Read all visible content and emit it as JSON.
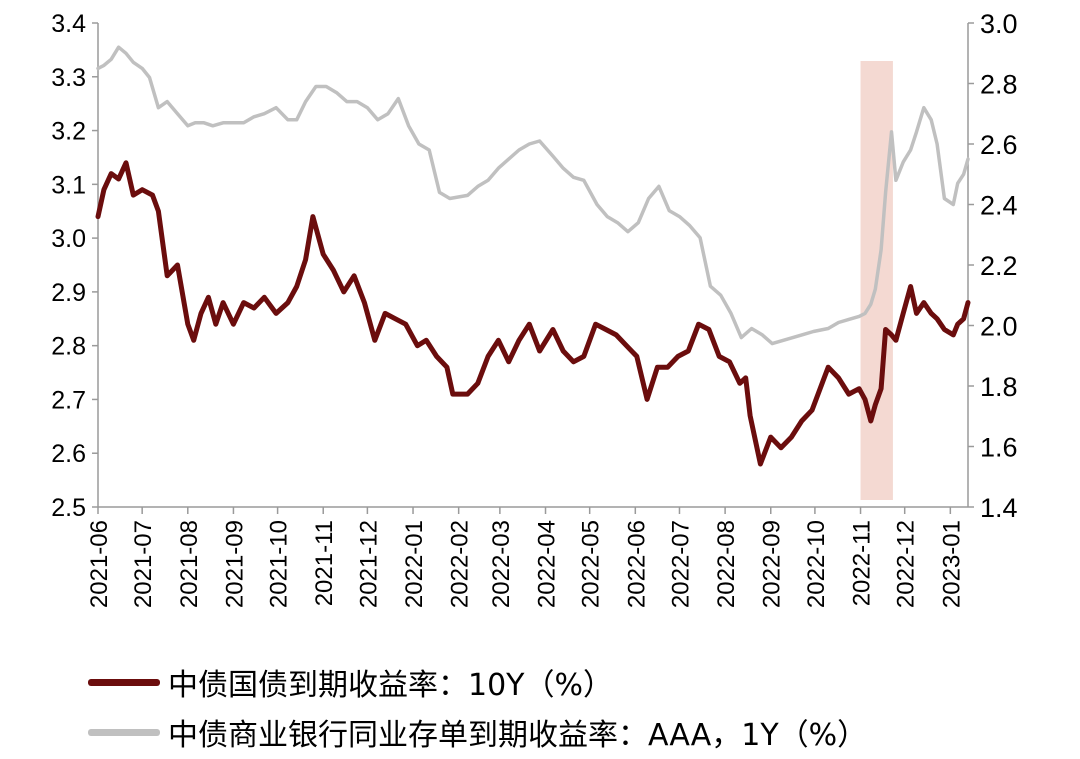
{
  "chart_data": {
    "type": "line",
    "x_ticks": [
      "2021-06",
      "2021-07",
      "2021-08",
      "2021-09",
      "2021-10",
      "2021-11",
      "2021-12",
      "2022-01",
      "2022-02",
      "2022-03",
      "2022-04",
      "2022-05",
      "2022-06",
      "2022-07",
      "2022-08",
      "2022-09",
      "2022-10",
      "2022-11",
      "2022-12",
      "2023-01"
    ],
    "y_left": {
      "ylim": [
        2.5,
        3.4
      ],
      "ticks": [
        "2.5",
        "2.6",
        "2.7",
        "2.8",
        "2.9",
        "3.0",
        "3.1",
        "3.2",
        "3.3",
        "3.4"
      ]
    },
    "y_right": {
      "ylim": [
        1.4,
        3.0
      ],
      "ticks": [
        "1.4",
        "1.6",
        "1.8",
        "2.0",
        "2.2",
        "2.4",
        "2.6",
        "2.8",
        "3.0"
      ]
    },
    "highlight_band": {
      "x_start": "2022-11-01",
      "x_end": "2022-11-23",
      "color": "#f4d9d2"
    },
    "series": [
      {
        "name": "中债国债到期收益率：10Y（%）",
        "axis": "left",
        "color": "#6b0d0d",
        "x": [
          "2021-06-01",
          "2021-06-05",
          "2021-06-10",
          "2021-06-15",
          "2021-06-20",
          "2021-06-25",
          "2021-07-01",
          "2021-07-08",
          "2021-07-12",
          "2021-07-18",
          "2021-07-25",
          "2021-08-01",
          "2021-08-05",
          "2021-08-10",
          "2021-08-15",
          "2021-08-20",
          "2021-08-25",
          "2021-09-01",
          "2021-09-08",
          "2021-09-15",
          "2021-09-22",
          "2021-09-30",
          "2021-10-08",
          "2021-10-14",
          "2021-10-20",
          "2021-10-25",
          "2021-11-01",
          "2021-11-08",
          "2021-11-15",
          "2021-11-22",
          "2021-11-29",
          "2021-12-06",
          "2021-12-13",
          "2021-12-20",
          "2021-12-27",
          "2022-01-04",
          "2022-01-10",
          "2022-01-17",
          "2022-01-24",
          "2022-01-28",
          "2022-02-07",
          "2022-02-14",
          "2022-02-21",
          "2022-02-28",
          "2022-03-07",
          "2022-03-14",
          "2022-03-21",
          "2022-03-28",
          "2022-04-06",
          "2022-04-13",
          "2022-04-20",
          "2022-04-27",
          "2022-05-05",
          "2022-05-12",
          "2022-05-19",
          "2022-05-26",
          "2022-06-02",
          "2022-06-09",
          "2022-06-16",
          "2022-06-23",
          "2022-06-30",
          "2022-07-07",
          "2022-07-14",
          "2022-07-21",
          "2022-07-28",
          "2022-08-04",
          "2022-08-11",
          "2022-08-15",
          "2022-08-18",
          "2022-08-25",
          "2022-09-01",
          "2022-09-08",
          "2022-09-15",
          "2022-09-22",
          "2022-09-29",
          "2022-10-10",
          "2022-10-17",
          "2022-10-24",
          "2022-10-31",
          "2022-11-04",
          "2022-11-08",
          "2022-11-11",
          "2022-11-15",
          "2022-11-18",
          "2022-11-22",
          "2022-11-25",
          "2022-11-30",
          "2022-12-05",
          "2022-12-09",
          "2022-12-14",
          "2022-12-19",
          "2022-12-23",
          "2022-12-28",
          "2023-01-03",
          "2023-01-06",
          "2023-01-10",
          "2023-01-13"
        ],
        "values": [
          3.04,
          3.09,
          3.12,
          3.11,
          3.14,
          3.08,
          3.09,
          3.08,
          3.05,
          2.93,
          2.95,
          2.84,
          2.81,
          2.86,
          2.89,
          2.84,
          2.88,
          2.84,
          2.88,
          2.87,
          2.89,
          2.86,
          2.88,
          2.91,
          2.96,
          3.04,
          2.97,
          2.94,
          2.9,
          2.93,
          2.88,
          2.81,
          2.86,
          2.85,
          2.84,
          2.8,
          2.81,
          2.78,
          2.76,
          2.71,
          2.71,
          2.73,
          2.78,
          2.81,
          2.77,
          2.81,
          2.84,
          2.79,
          2.83,
          2.79,
          2.77,
          2.78,
          2.84,
          2.83,
          2.82,
          2.8,
          2.78,
          2.7,
          2.76,
          2.76,
          2.78,
          2.79,
          2.84,
          2.83,
          2.78,
          2.77,
          2.73,
          2.74,
          2.67,
          2.58,
          2.63,
          2.61,
          2.63,
          2.66,
          2.68,
          2.76,
          2.74,
          2.71,
          2.72,
          2.7,
          2.66,
          2.69,
          2.72,
          2.83,
          2.82,
          2.81,
          2.86,
          2.91,
          2.86,
          2.88,
          2.86,
          2.85,
          2.83,
          2.82,
          2.84,
          2.85,
          2.88
        ]
      },
      {
        "name": "中债商业银行同业存单到期收益率：AAA，1Y（%）",
        "axis": "right",
        "color": "#c0c0c0",
        "x": [
          "2021-06-01",
          "2021-06-05",
          "2021-06-10",
          "2021-06-15",
          "2021-06-20",
          "2021-06-25",
          "2021-07-01",
          "2021-07-06",
          "2021-07-12",
          "2021-07-18",
          "2021-07-25",
          "2021-08-01",
          "2021-08-06",
          "2021-08-12",
          "2021-08-18",
          "2021-08-25",
          "2021-09-01",
          "2021-09-08",
          "2021-09-15",
          "2021-09-22",
          "2021-09-30",
          "2021-10-08",
          "2021-10-14",
          "2021-10-20",
          "2021-10-27",
          "2021-11-03",
          "2021-11-10",
          "2021-11-17",
          "2021-11-24",
          "2021-12-01",
          "2021-12-08",
          "2021-12-15",
          "2021-12-22",
          "2021-12-29",
          "2022-01-05",
          "2022-01-12",
          "2022-01-19",
          "2022-01-26",
          "2022-02-07",
          "2022-02-14",
          "2022-02-21",
          "2022-02-28",
          "2022-03-07",
          "2022-03-14",
          "2022-03-21",
          "2022-03-28",
          "2022-04-06",
          "2022-04-13",
          "2022-04-20",
          "2022-04-27",
          "2022-05-06",
          "2022-05-13",
          "2022-05-20",
          "2022-05-27",
          "2022-06-03",
          "2022-06-10",
          "2022-06-17",
          "2022-06-24",
          "2022-07-01",
          "2022-07-08",
          "2022-07-15",
          "2022-07-22",
          "2022-07-29",
          "2022-08-05",
          "2022-08-12",
          "2022-08-19",
          "2022-08-26",
          "2022-09-02",
          "2022-09-09",
          "2022-09-16",
          "2022-09-23",
          "2022-09-30",
          "2022-10-10",
          "2022-10-17",
          "2022-10-24",
          "2022-10-31",
          "2022-11-04",
          "2022-11-08",
          "2022-11-11",
          "2022-11-15",
          "2022-11-18",
          "2022-11-22",
          "2022-11-25",
          "2022-11-30",
          "2022-12-05",
          "2022-12-09",
          "2022-12-14",
          "2022-12-19",
          "2022-12-23",
          "2022-12-28",
          "2023-01-03",
          "2023-01-06",
          "2023-01-10",
          "2023-01-13"
        ],
        "values": [
          2.85,
          2.86,
          2.88,
          2.92,
          2.9,
          2.87,
          2.85,
          2.82,
          2.72,
          2.74,
          2.7,
          2.66,
          2.67,
          2.67,
          2.66,
          2.67,
          2.67,
          2.67,
          2.69,
          2.7,
          2.72,
          2.68,
          2.68,
          2.74,
          2.79,
          2.79,
          2.77,
          2.74,
          2.74,
          2.72,
          2.68,
          2.7,
          2.75,
          2.66,
          2.6,
          2.58,
          2.44,
          2.42,
          2.43,
          2.46,
          2.48,
          2.52,
          2.55,
          2.58,
          2.6,
          2.61,
          2.56,
          2.52,
          2.49,
          2.48,
          2.4,
          2.36,
          2.34,
          2.31,
          2.34,
          2.42,
          2.46,
          2.38,
          2.36,
          2.33,
          2.29,
          2.13,
          2.1,
          2.04,
          1.96,
          1.99,
          1.97,
          1.94,
          1.95,
          1.96,
          1.97,
          1.98,
          1.99,
          2.01,
          2.02,
          2.03,
          2.04,
          2.07,
          2.12,
          2.25,
          2.44,
          2.64,
          2.48,
          2.54,
          2.58,
          2.64,
          2.72,
          2.68,
          2.6,
          2.42,
          2.4,
          2.47,
          2.5,
          2.55
        ]
      }
    ]
  }
}
